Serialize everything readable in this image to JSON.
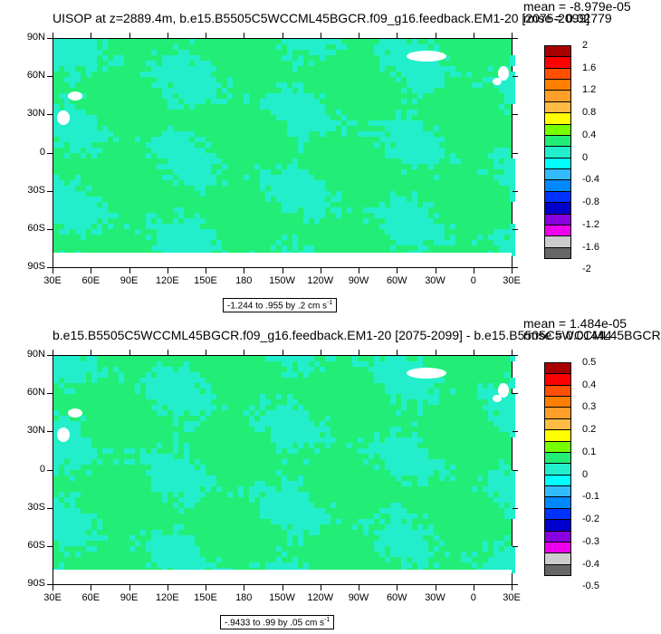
{
  "panels": [
    {
      "title": "UISOP at z=2889.4m, b.e15.B5505C5WCCML45BGCR.f09_g16.feedback.EM1-20 [2075-2099]",
      "mean": "mean = -8.979e-05",
      "rmse": "rmse = 0.02779",
      "range_text": "-1.244 to .955 by .2 cm s",
      "range_unit_sup": "-1",
      "colorbar_labels": [
        "2",
        "1.6",
        "1.2",
        "0.8",
        "0.4",
        "0",
        "-0.4",
        "-0.8",
        "-1.2",
        "-1.6",
        "-2"
      ]
    },
    {
      "title": "b.e15.B5505C5WCCML45BGCR.f09_g16.feedback.EM1-20 [2075-2099] - b.e15.B5505C5WCCML45BGCR",
      "mean": "mean = 1.484e-05",
      "rmse": "rmse = 0.01444",
      "range_text": "-.9433 to .99 by .05 cm s",
      "range_unit_sup": "-1",
      "colorbar_labels": [
        "0.5",
        "0.4",
        "0.3",
        "0.2",
        "0.1",
        "0",
        "-0.1",
        "-0.2",
        "-0.3",
        "-0.4",
        "-0.5"
      ]
    }
  ],
  "lat_labels": [
    "90N",
    "60N",
    "30N",
    "0",
    "30S",
    "60S",
    "90S"
  ],
  "lon_labels": [
    "30E",
    "60E",
    "90E",
    "120E",
    "150E",
    "180",
    "150W",
    "120W",
    "90W",
    "60W",
    "30W",
    "0",
    "30E"
  ],
  "colors": {
    "map_base": "#22ee77",
    "map_mottle": "#22eecc",
    "colorbar": [
      "#a80000",
      "#ff0000",
      "#ff4f00",
      "#ff7f00",
      "#ff9f2a",
      "#ffbb44",
      "#ffff00",
      "#77ff00",
      "#22ee77",
      "#22eecc",
      "#00ffff",
      "#33bbff",
      "#0088ff",
      "#0033ff",
      "#0000cc",
      "#8800dd",
      "#ee00ee",
      "#cccccc",
      "#666666"
    ]
  }
}
